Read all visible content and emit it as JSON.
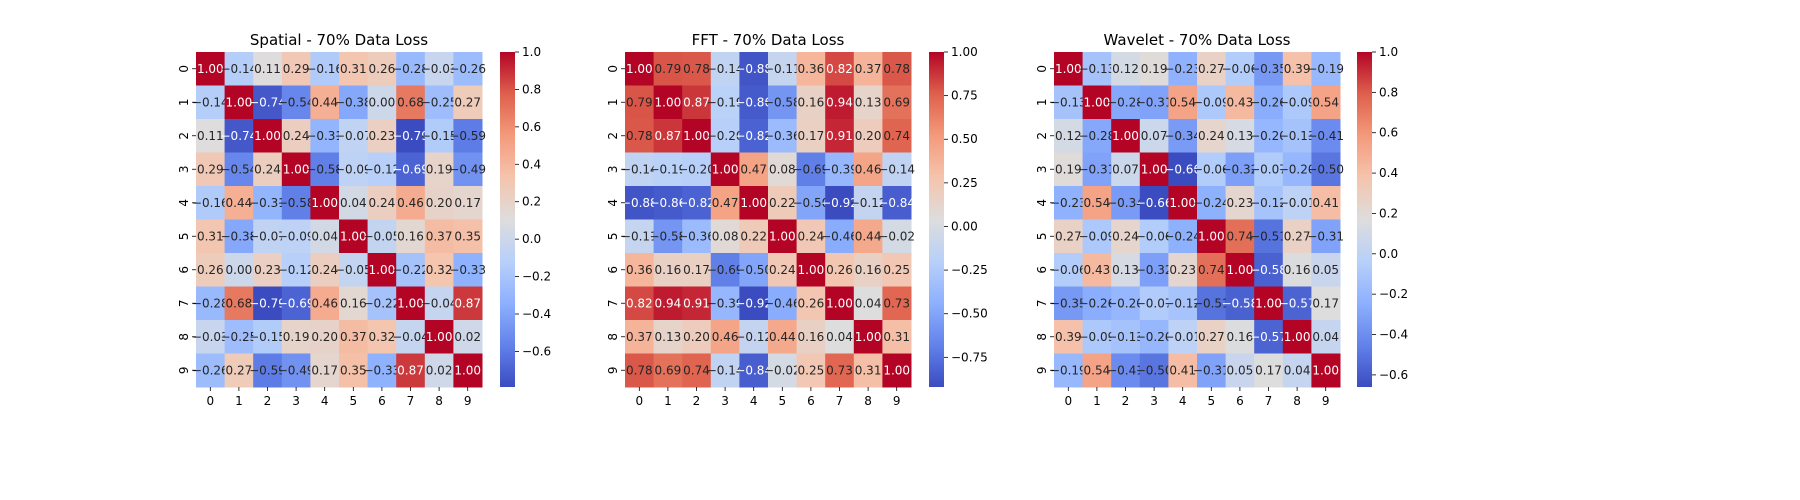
{
  "chart_data": [
    {
      "type": "heatmap",
      "title": "Spatial - 70% Data Loss",
      "x_categories": [
        "0",
        "1",
        "2",
        "3",
        "4",
        "5",
        "6",
        "7",
        "8",
        "9"
      ],
      "y_categories": [
        "0",
        "1",
        "2",
        "3",
        "4",
        "5",
        "6",
        "7",
        "8",
        "9"
      ],
      "colormap": "coolwarm",
      "vmin": -0.79,
      "vmax": 1.0,
      "colorbar_ticks": [
        -0.6,
        -0.4,
        -0.2,
        0.0,
        0.2,
        0.4,
        0.6,
        0.8,
        1.0
      ],
      "colorbar_tick_labels": [
        "−0.6",
        "−0.4",
        "−0.2",
        "0.0",
        "0.2",
        "0.4",
        "0.6",
        "0.8",
        "1.0"
      ],
      "values": [
        [
          1.0,
          -0.14,
          0.11,
          0.29,
          -0.16,
          0.31,
          0.26,
          -0.28,
          -0.03,
          -0.26
        ],
        [
          -0.14,
          1.0,
          -0.74,
          -0.54,
          0.44,
          -0.38,
          0.0,
          0.68,
          -0.25,
          0.27
        ],
        [
          0.11,
          -0.74,
          1.0,
          0.24,
          -0.31,
          -0.07,
          0.23,
          -0.79,
          -0.15,
          -0.59
        ],
        [
          0.29,
          -0.54,
          0.24,
          1.0,
          -0.58,
          -0.09,
          -0.12,
          -0.69,
          0.19,
          -0.49
        ],
        [
          -0.16,
          0.44,
          -0.31,
          -0.58,
          1.0,
          0.04,
          0.24,
          0.46,
          0.2,
          0.17
        ],
        [
          0.31,
          -0.38,
          -0.07,
          -0.09,
          0.04,
          1.0,
          -0.05,
          0.16,
          0.37,
          0.35
        ],
        [
          0.26,
          0.0,
          0.23,
          -0.12,
          0.24,
          -0.05,
          1.0,
          -0.22,
          0.32,
          -0.33
        ],
        [
          -0.28,
          0.68,
          -0.79,
          -0.69,
          0.46,
          0.16,
          -0.22,
          1.0,
          -0.04,
          0.87
        ],
        [
          -0.03,
          -0.25,
          -0.15,
          0.19,
          0.2,
          0.37,
          0.32,
          -0.04,
          1.0,
          0.02
        ],
        [
          -0.26,
          0.27,
          -0.59,
          -0.49,
          0.17,
          0.35,
          -0.33,
          0.87,
          0.02,
          1.0
        ]
      ]
    },
    {
      "type": "heatmap",
      "title": "FFT - 70% Data Loss",
      "x_categories": [
        "0",
        "1",
        "2",
        "3",
        "4",
        "5",
        "6",
        "7",
        "8",
        "9"
      ],
      "y_categories": [
        "0",
        "1",
        "2",
        "3",
        "4",
        "5",
        "6",
        "7",
        "8",
        "9"
      ],
      "colormap": "coolwarm",
      "vmin": -0.92,
      "vmax": 1.0,
      "colorbar_ticks": [
        -0.75,
        -0.5,
        -0.25,
        0.0,
        0.25,
        0.5,
        0.75,
        1.0
      ],
      "colorbar_tick_labels": [
        "−0.75",
        "−0.50",
        "−0.25",
        "0.00",
        "0.25",
        "0.50",
        "0.75",
        "1.00"
      ],
      "values": [
        [
          1.0,
          0.79,
          0.78,
          -0.14,
          -0.88,
          -0.11,
          0.36,
          0.82,
          0.37,
          0.78
        ],
        [
          0.79,
          1.0,
          0.87,
          -0.19,
          -0.86,
          -0.58,
          0.16,
          0.94,
          0.13,
          0.69
        ],
        [
          0.78,
          0.87,
          1.0,
          -0.2,
          -0.82,
          -0.36,
          0.17,
          0.91,
          0.2,
          0.74
        ],
        [
          -0.14,
          -0.19,
          -0.2,
          1.0,
          0.47,
          0.08,
          -0.69,
          -0.39,
          0.46,
          -0.14
        ],
        [
          -0.88,
          -0.86,
          -0.82,
          0.47,
          1.0,
          0.22,
          -0.5,
          -0.92,
          -0.12,
          -0.84
        ],
        [
          -0.11,
          -0.58,
          -0.36,
          0.08,
          0.22,
          1.0,
          0.24,
          -0.46,
          0.44,
          -0.02
        ],
        [
          0.36,
          0.16,
          0.17,
          -0.69,
          -0.5,
          0.24,
          1.0,
          0.26,
          0.16,
          0.25
        ],
        [
          0.82,
          0.94,
          0.91,
          -0.39,
          -0.92,
          -0.46,
          0.26,
          1.0,
          0.04,
          0.73
        ],
        [
          0.37,
          0.13,
          0.2,
          0.46,
          -0.12,
          0.44,
          0.16,
          0.04,
          1.0,
          0.31
        ],
        [
          0.78,
          0.69,
          0.74,
          -0.14,
          -0.84,
          -0.02,
          0.25,
          0.73,
          0.31,
          1.0
        ]
      ]
    },
    {
      "type": "heatmap",
      "title": "Wavelet - 70% Data Loss",
      "x_categories": [
        "0",
        "1",
        "2",
        "3",
        "4",
        "5",
        "6",
        "7",
        "8",
        "9"
      ],
      "y_categories": [
        "0",
        "1",
        "2",
        "3",
        "4",
        "5",
        "6",
        "7",
        "8",
        "9"
      ],
      "colormap": "coolwarm",
      "vmin": -0.66,
      "vmax": 1.0,
      "colorbar_ticks": [
        -0.6,
        -0.4,
        -0.2,
        0.0,
        0.2,
        0.4,
        0.6,
        0.8,
        1.0
      ],
      "colorbar_tick_labels": [
        "−0.6",
        "−0.4",
        "−0.2",
        "0.0",
        "0.2",
        "0.4",
        "0.6",
        "0.8",
        "1.0"
      ],
      "values": [
        [
          1.0,
          -0.13,
          0.12,
          0.19,
          -0.23,
          0.27,
          -0.06,
          -0.35,
          0.39,
          -0.19
        ],
        [
          -0.13,
          1.0,
          -0.28,
          -0.31,
          0.54,
          -0.09,
          0.43,
          -0.26,
          -0.09,
          0.54
        ],
        [
          0.12,
          -0.28,
          1.0,
          0.07,
          -0.34,
          0.24,
          0.13,
          -0.2,
          -0.13,
          -0.41
        ],
        [
          0.19,
          -0.31,
          0.07,
          1.0,
          -0.66,
          -0.06,
          -0.32,
          -0.07,
          -0.2,
          -0.5
        ],
        [
          -0.23,
          0.54,
          -0.34,
          -0.66,
          1.0,
          -0.24,
          0.23,
          -0.12,
          -0.01,
          0.41
        ],
        [
          0.27,
          -0.09,
          0.24,
          -0.06,
          -0.24,
          1.0,
          0.74,
          -0.51,
          0.27,
          -0.31
        ],
        [
          -0.06,
          0.43,
          0.13,
          -0.32,
          0.23,
          0.74,
          1.0,
          -0.58,
          0.16,
          0.05
        ],
        [
          -0.35,
          -0.26,
          -0.2,
          -0.07,
          -0.12,
          -0.51,
          -0.58,
          1.0,
          -0.57,
          0.17
        ],
        [
          0.39,
          -0.09,
          -0.13,
          -0.2,
          -0.01,
          0.27,
          0.16,
          -0.57,
          1.0,
          0.04
        ],
        [
          -0.19,
          0.54,
          -0.41,
          -0.5,
          0.41,
          -0.31,
          0.05,
          0.17,
          0.04,
          1.0
        ]
      ]
    }
  ]
}
